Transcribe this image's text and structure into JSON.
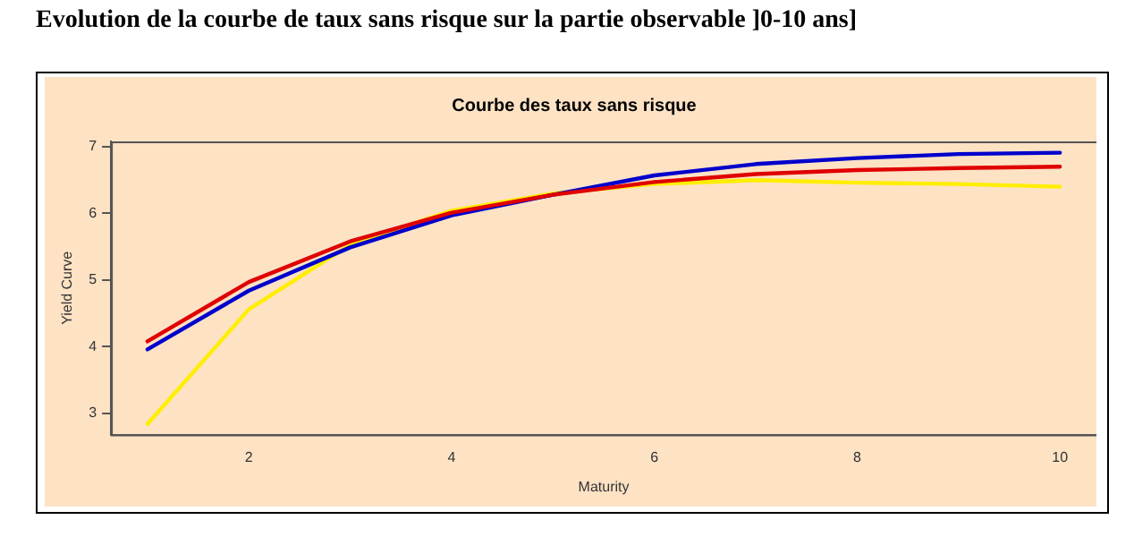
{
  "chart_data": {
    "type": "line",
    "title": "Courbe des taux sans risque",
    "xlabel": "Maturity",
    "ylabel": "Yield Curve",
    "annotations": [
      "Evolution de la courbe de taux sans risque sur la partie observable ]0-10 ans]"
    ],
    "x": [
      1,
      2,
      3,
      4,
      5,
      6,
      7,
      8,
      9,
      10
    ],
    "series": [
      {
        "color": "#e00000",
        "values": [
          4.08,
          4.97,
          5.58,
          6.01,
          6.28,
          6.47,
          6.59,
          6.65,
          6.68,
          6.7
        ]
      },
      {
        "color": "#0000cc",
        "values": [
          3.96,
          4.84,
          5.49,
          5.97,
          6.28,
          6.57,
          6.74,
          6.83,
          6.89,
          6.91
        ]
      },
      {
        "color": "#ffee00",
        "values": [
          2.84,
          4.56,
          5.53,
          6.04,
          6.3,
          6.44,
          6.5,
          6.46,
          6.44,
          6.4
        ]
      }
    ],
    "xlim": [
      0.64,
      10.36
    ],
    "ylim": [
      2.68,
      7.08
    ],
    "xticks": [
      2,
      4,
      6,
      8,
      10
    ],
    "yticks": [
      3,
      4,
      5,
      6,
      7
    ],
    "grid": false,
    "legend": false,
    "marker": "none",
    "line_style": "solid"
  }
}
